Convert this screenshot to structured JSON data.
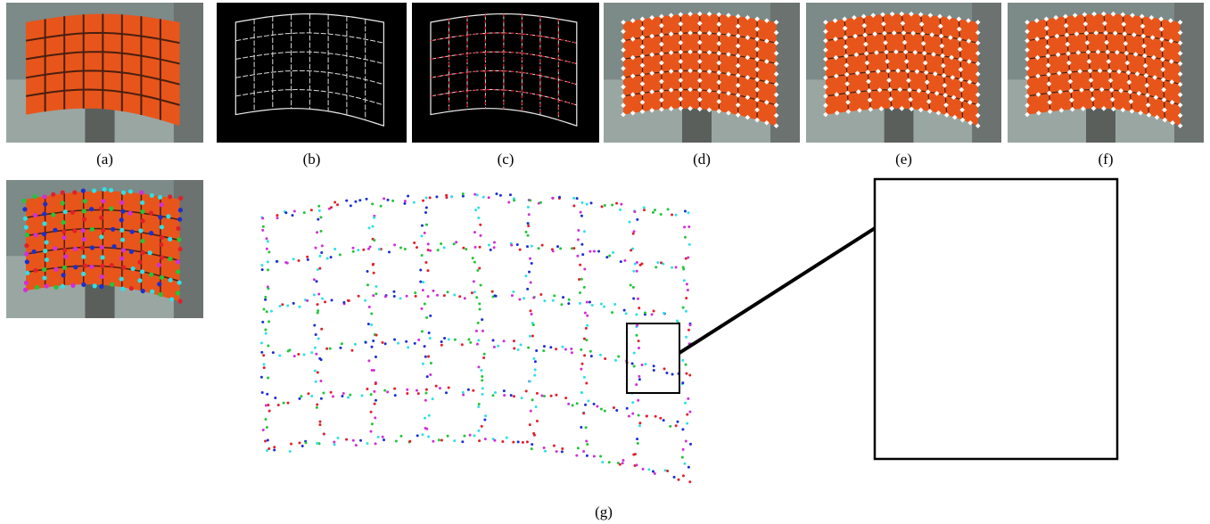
{
  "figure": {
    "subfigure_labels": [
      "(a)",
      "(b)",
      "(c)",
      "(d)",
      "(e)",
      "(f)"
    ],
    "main_label": "(g)"
  }
}
